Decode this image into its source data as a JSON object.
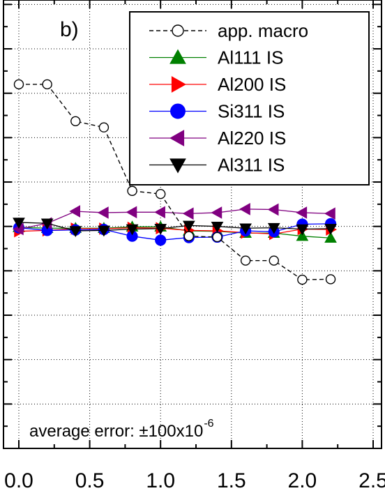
{
  "chart_data": {
    "type": "line",
    "panel_label": "b)",
    "title": "",
    "xlabel": "",
    "ylabel": "",
    "xlim": [
      0.0,
      2.5
    ],
    "xticks": [
      0.0,
      0.5,
      1.0,
      1.5,
      2.0,
      2.5
    ],
    "xtick_labels": [
      "0.0",
      "0.5",
      "1.0",
      "1.5",
      "2.0",
      "2.5"
    ],
    "ylim": [
      -0.5,
      0.51
    ],
    "grid": true,
    "legend_position": "top-right",
    "annotation": {
      "prefix": "average error: ±100x10",
      "exponent": "-6"
    },
    "x": [
      0.0,
      0.2,
      0.4,
      0.6,
      0.8,
      1.0,
      1.2,
      1.4,
      1.6,
      1.8,
      2.0,
      2.2
    ],
    "series": [
      {
        "name": "app. macro",
        "color": "#000000",
        "marker": "circle-open",
        "dashed": true,
        "values": [
          0.32,
          0.32,
          0.237,
          0.223,
          0.08,
          0.073,
          -0.022,
          -0.024,
          -0.077,
          -0.077,
          -0.12,
          -0.119
        ]
      },
      {
        "name": "Al111 IS",
        "color": "#008000",
        "marker": "triangle-up",
        "dashed": false,
        "values": [
          -0.002,
          -0.004,
          -0.004,
          -0.004,
          -0.001,
          -0.001,
          -0.01,
          -0.011,
          -0.015,
          -0.015,
          -0.022,
          -0.026
        ]
      },
      {
        "name": "Al200 IS",
        "color": "#ff0000",
        "marker": "triangle-right",
        "dashed": false,
        "values": [
          -0.011,
          -0.009,
          -0.005,
          -0.005,
          -0.003,
          -0.004,
          -0.009,
          -0.01,
          -0.014,
          -0.017,
          -0.006,
          -0.007
        ]
      },
      {
        "name": "Si311 IS",
        "color": "#0000ff",
        "marker": "circle",
        "dashed": false,
        "values": [
          -0.003,
          -0.009,
          -0.008,
          -0.007,
          -0.022,
          -0.031,
          -0.025,
          -0.024,
          -0.01,
          -0.012,
          0.005,
          0.006
        ]
      },
      {
        "name": "Al220 IS",
        "color": "#800080",
        "marker": "triangle-left",
        "dashed": false,
        "values": [
          -0.006,
          0.007,
          0.034,
          0.031,
          0.032,
          0.032,
          0.029,
          0.031,
          0.039,
          0.038,
          0.031,
          0.029
        ]
      },
      {
        "name": "Al311 IS",
        "color": "#000000",
        "marker": "triangle-down",
        "dashed": false,
        "values": [
          0.009,
          0.007,
          -0.01,
          -0.009,
          -0.006,
          -0.005,
          0.002,
          0.0,
          -0.004,
          -0.003,
          -0.006,
          -0.005
        ]
      }
    ]
  }
}
